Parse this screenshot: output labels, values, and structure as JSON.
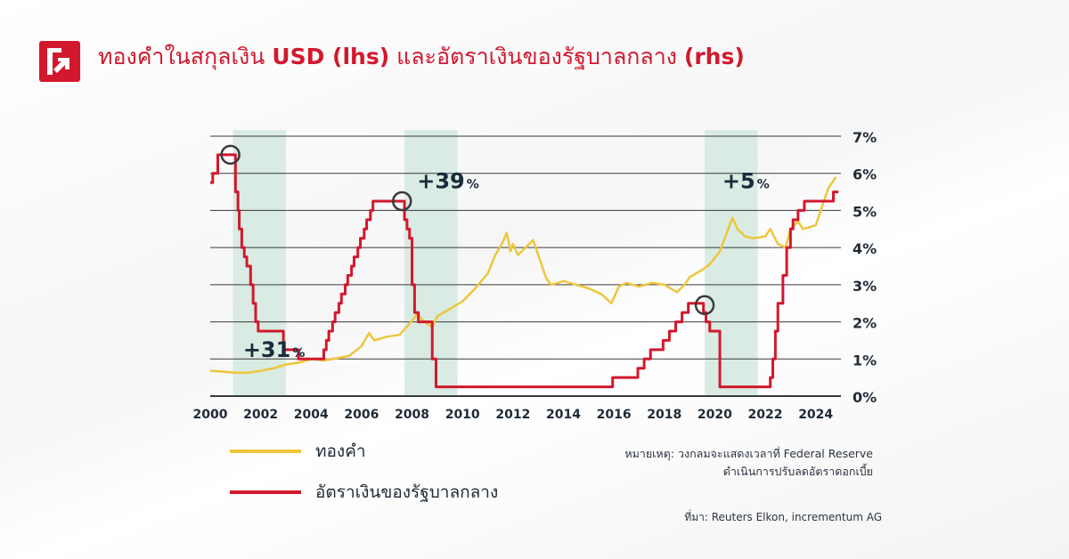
{
  "header": {
    "title_part1": "ทองคำในสกุลเงิน ",
    "title_bold1": "USD (lhs)",
    "title_part2": " และอัตราเงินของรัฐบาลกลาง ",
    "title_bold2": "(rhs)"
  },
  "colors": {
    "brand_red": "#d2182d",
    "gold_line": "#eec63a",
    "rate_line": "#d2182d",
    "shade": "#d9ebe3",
    "grid": "#3a3a3a",
    "text": "#1f2a36"
  },
  "legend": [
    {
      "label": "ทองคำ",
      "color": "#eec63a"
    },
    {
      "label": "อัตราเงินของรัฐบาลกลาง",
      "color": "#d2182d"
    }
  ],
  "note_line1": "หมายเหตุ: วงกลมจะแสดงเวลาที่ Federal Reserve",
  "note_line2": "ดำเนินการปรับลดอัตราดอกเบี้ย",
  "source": "ที่มา: Reuters Elkon, incrementum AG",
  "chart_data": {
    "type": "line",
    "title": "",
    "xlabel": "",
    "ylabel": "",
    "xlim": [
      2000,
      2025
    ],
    "ylim_right": [
      0,
      7
    ],
    "grid": true,
    "x_ticks": [
      "2000",
      "2002",
      "2004",
      "2006",
      "2008",
      "2010",
      "2012",
      "2014",
      "2016",
      "2018",
      "2020",
      "2022",
      "2024"
    ],
    "y_ticks": [
      "0%",
      "1%",
      "2%",
      "3%",
      "4%",
      "5%",
      "6%",
      "7%"
    ],
    "shaded_periods": [
      [
        2000.9,
        2003.0
      ],
      [
        2007.7,
        2009.8
      ],
      [
        2019.6,
        2021.7
      ]
    ],
    "annotations": [
      {
        "big": "+31",
        "small": "%",
        "x": 2001.3,
        "y": 1.05
      },
      {
        "big": "+39",
        "small": "%",
        "x": 2008.2,
        "y": 5.6
      },
      {
        "big": "+5",
        "small": "%",
        "x": 2020.3,
        "y": 5.6
      }
    ],
    "cut_circles": [
      {
        "x": 2000.8,
        "y": 6.5
      },
      {
        "x": 2007.6,
        "y": 5.25
      },
      {
        "x": 2019.6,
        "y": 2.45
      }
    ],
    "series": [
      {
        "name": "ทองคำ",
        "color": "#eec63a",
        "x": [
          2000.0,
          2000.5,
          2001.0,
          2001.5,
          2002.0,
          2002.5,
          2003.0,
          2003.5,
          2004.0,
          2004.5,
          2005.0,
          2005.5,
          2006.0,
          2006.3,
          2006.5,
          2007.0,
          2007.5,
          2007.9,
          2008.2,
          2008.5,
          2008.8,
          2009.0,
          2009.5,
          2010.0,
          2010.5,
          2011.0,
          2011.3,
          2011.6,
          2011.75,
          2011.9,
          2012.0,
          2012.2,
          2012.5,
          2012.8,
          2013.0,
          2013.3,
          2013.5,
          2013.8,
          2014.0,
          2014.5,
          2015.0,
          2015.5,
          2015.9,
          2016.2,
          2016.5,
          2017.0,
          2017.5,
          2018.0,
          2018.5,
          2018.8,
          2019.0,
          2019.5,
          2019.8,
          2020.2,
          2020.5,
          2020.7,
          2020.9,
          2021.2,
          2021.5,
          2022.0,
          2022.2,
          2022.5,
          2022.8,
          2023.0,
          2023.3,
          2023.5,
          2024.0,
          2024.5,
          2024.8
        ],
        "y": [
          0.68,
          0.66,
          0.63,
          0.63,
          0.68,
          0.75,
          0.85,
          0.9,
          1.0,
          0.96,
          1.02,
          1.08,
          1.35,
          1.7,
          1.5,
          1.6,
          1.65,
          1.95,
          2.2,
          2.0,
          1.85,
          2.15,
          2.35,
          2.55,
          2.9,
          3.3,
          3.8,
          4.15,
          4.4,
          3.9,
          4.1,
          3.8,
          4.0,
          4.2,
          3.8,
          3.2,
          3.0,
          3.05,
          3.1,
          3.0,
          2.9,
          2.75,
          2.5,
          2.95,
          3.05,
          2.95,
          3.05,
          3.0,
          2.8,
          3.0,
          3.2,
          3.4,
          3.55,
          3.9,
          4.45,
          4.8,
          4.5,
          4.3,
          4.25,
          4.3,
          4.5,
          4.1,
          4.0,
          4.5,
          4.7,
          4.5,
          4.6,
          5.6,
          5.9
        ]
      },
      {
        "name": "อัตราเงินของรัฐบาลกลาง",
        "color": "#d2182d",
        "step": true,
        "x": [
          2000.0,
          2000.1,
          2000.3,
          2000.4,
          2001.0,
          2001.1,
          2001.15,
          2001.25,
          2001.35,
          2001.45,
          2001.6,
          2001.7,
          2001.8,
          2001.9,
          2002.9,
          2003.5,
          2004.5,
          2004.6,
          2004.7,
          2004.85,
          2004.95,
          2005.1,
          2005.2,
          2005.35,
          2005.45,
          2005.6,
          2005.7,
          2005.85,
          2005.95,
          2006.1,
          2006.2,
          2006.35,
          2006.45,
          2006.6,
          2007.7,
          2007.8,
          2007.9,
          2008.0,
          2008.1,
          2008.25,
          2008.35,
          2008.8,
          2008.95,
          2015.95,
          2016.95,
          2017.2,
          2017.45,
          2017.95,
          2018.2,
          2018.45,
          2018.7,
          2018.95,
          2019.55,
          2019.65,
          2019.8,
          2020.2,
          2021.95,
          2022.2,
          2022.3,
          2022.4,
          2022.5,
          2022.7,
          2022.85,
          2023.0,
          2023.1,
          2023.3,
          2023.55,
          2024.7,
          2024.75,
          2024.85,
          2024.9
        ],
        "y": [
          5.75,
          6.0,
          6.5,
          6.5,
          5.5,
          5.0,
          4.5,
          4.0,
          3.75,
          3.5,
          3.0,
          2.5,
          2.0,
          1.75,
          1.25,
          1.0,
          1.25,
          1.5,
          1.75,
          2.0,
          2.25,
          2.5,
          2.75,
          3.0,
          3.25,
          3.5,
          3.75,
          4.0,
          4.25,
          4.5,
          4.75,
          5.0,
          5.25,
          5.25,
          4.75,
          4.5,
          4.25,
          3.0,
          2.25,
          2.0,
          2.0,
          1.0,
          0.25,
          0.5,
          0.75,
          1.0,
          1.25,
          1.5,
          1.75,
          2.0,
          2.25,
          2.5,
          2.25,
          2.0,
          1.75,
          0.25,
          0.25,
          0.5,
          1.0,
          1.75,
          2.5,
          3.25,
          4.0,
          4.5,
          4.75,
          5.0,
          5.25,
          5.5,
          5.5,
          5.5,
          5.5
        ]
      }
    ]
  }
}
